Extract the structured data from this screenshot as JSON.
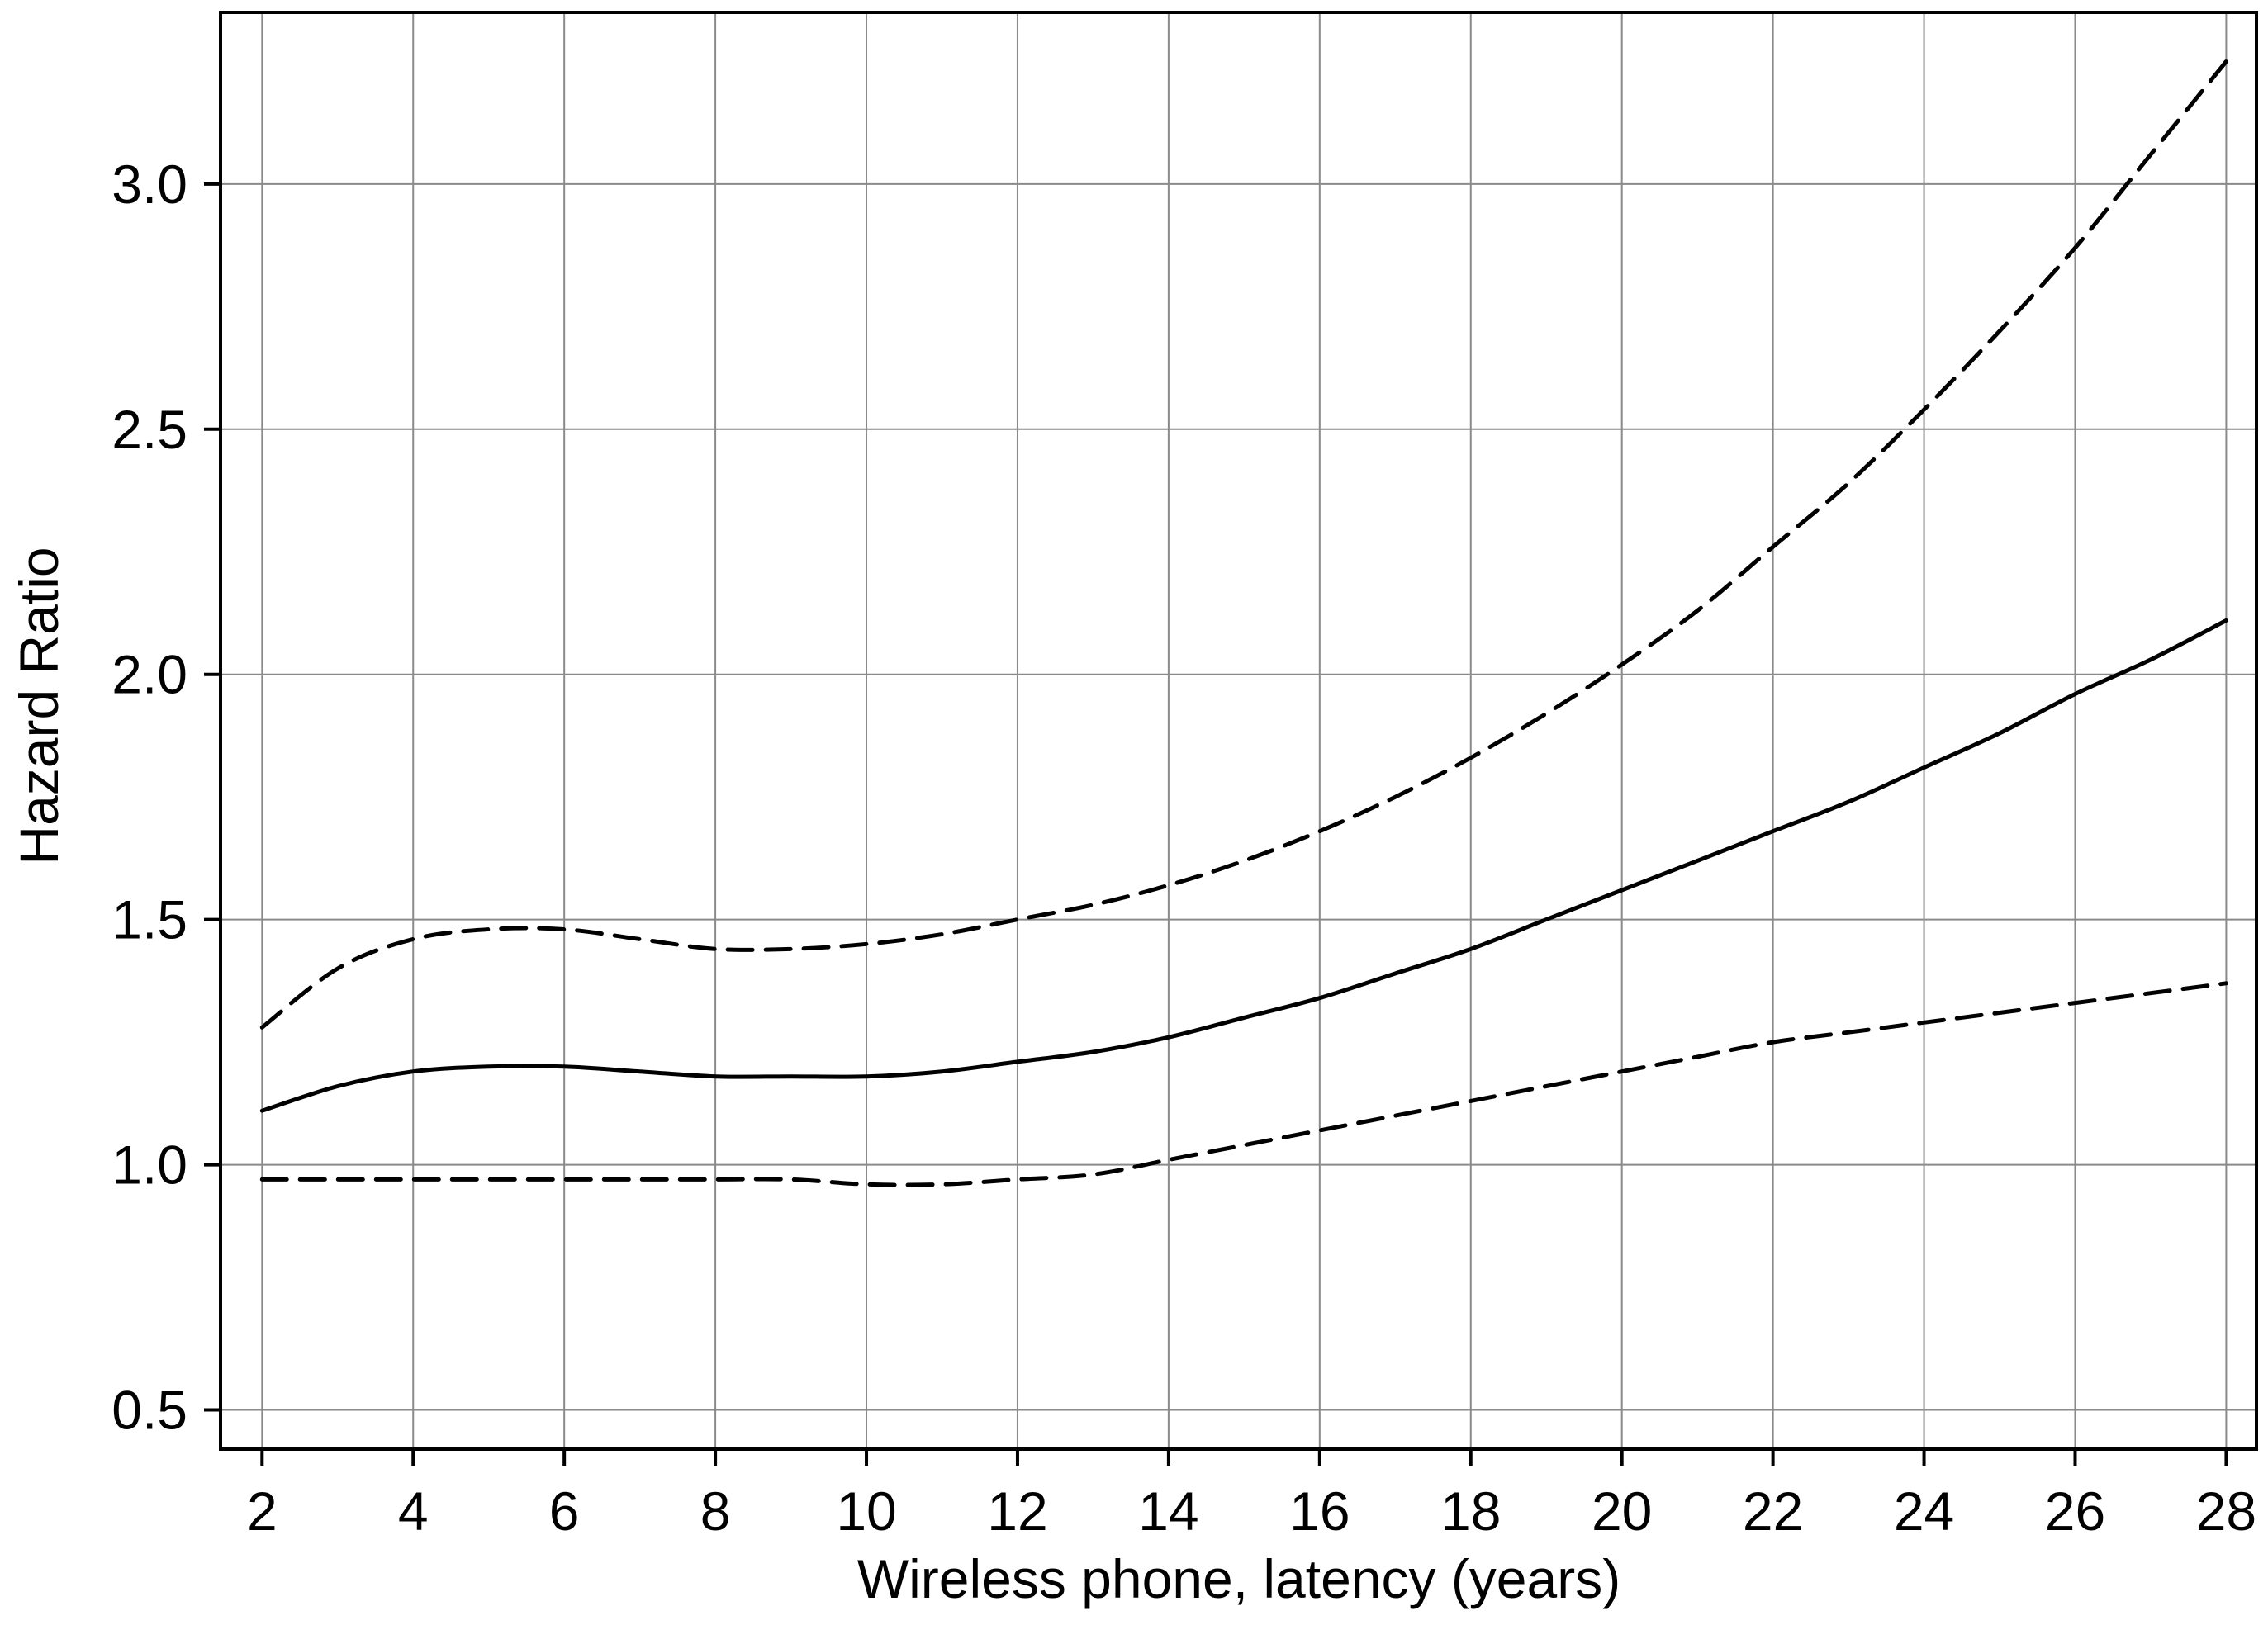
{
  "chart_data": {
    "type": "line",
    "title": "",
    "xlabel": "Wireless phone, latency (years)",
    "ylabel": "Hazard Ratio",
    "xlim": [
      1.45,
      28.4
    ],
    "ylim": [
      0.42,
      3.35
    ],
    "xticks": [
      2,
      4,
      6,
      8,
      10,
      12,
      14,
      16,
      18,
      20,
      22,
      24,
      26,
      28
    ],
    "xtick_labels": [
      "2",
      "4",
      "6",
      "8",
      "10",
      "12",
      "14",
      "16",
      "18",
      "20",
      "22",
      "24",
      "26",
      "28"
    ],
    "yticks": [
      0.5,
      1.0,
      1.5,
      2.0,
      2.5,
      3.0
    ],
    "ytick_labels": [
      "0.5",
      "1.0",
      "1.5",
      "2.0",
      "2.5",
      "3.0"
    ],
    "grid": true,
    "legend": "none",
    "x": [
      2,
      3,
      4,
      5,
      6,
      7,
      8,
      9,
      10,
      11,
      12,
      13,
      14,
      15,
      16,
      17,
      18,
      19,
      20,
      21,
      22,
      23,
      24,
      25,
      26,
      27,
      28
    ],
    "series": [
      {
        "style": "solid",
        "values": [
          1.11,
          1.16,
          1.19,
          1.2,
          1.2,
          1.19,
          1.18,
          1.18,
          1.18,
          1.19,
          1.21,
          1.23,
          1.26,
          1.3,
          1.34,
          1.39,
          1.44,
          1.5,
          1.56,
          1.62,
          1.68,
          1.74,
          1.81,
          1.88,
          1.96,
          2.03,
          2.11
        ]
      },
      {
        "style": "dashed",
        "values": [
          1.28,
          1.4,
          1.46,
          1.48,
          1.48,
          1.46,
          1.44,
          1.44,
          1.45,
          1.47,
          1.5,
          1.53,
          1.57,
          1.62,
          1.68,
          1.75,
          1.83,
          1.92,
          2.02,
          2.13,
          2.26,
          2.39,
          2.54,
          2.7,
          2.87,
          3.06,
          3.25
        ]
      },
      {
        "style": "dashed",
        "values": [
          0.97,
          0.97,
          0.97,
          0.97,
          0.97,
          0.97,
          0.97,
          0.97,
          0.96,
          0.96,
          0.97,
          0.98,
          1.01,
          1.04,
          1.07,
          1.1,
          1.13,
          1.16,
          1.19,
          1.22,
          1.25,
          1.27,
          1.29,
          1.31,
          1.33,
          1.35,
          1.37
        ]
      }
    ]
  }
}
